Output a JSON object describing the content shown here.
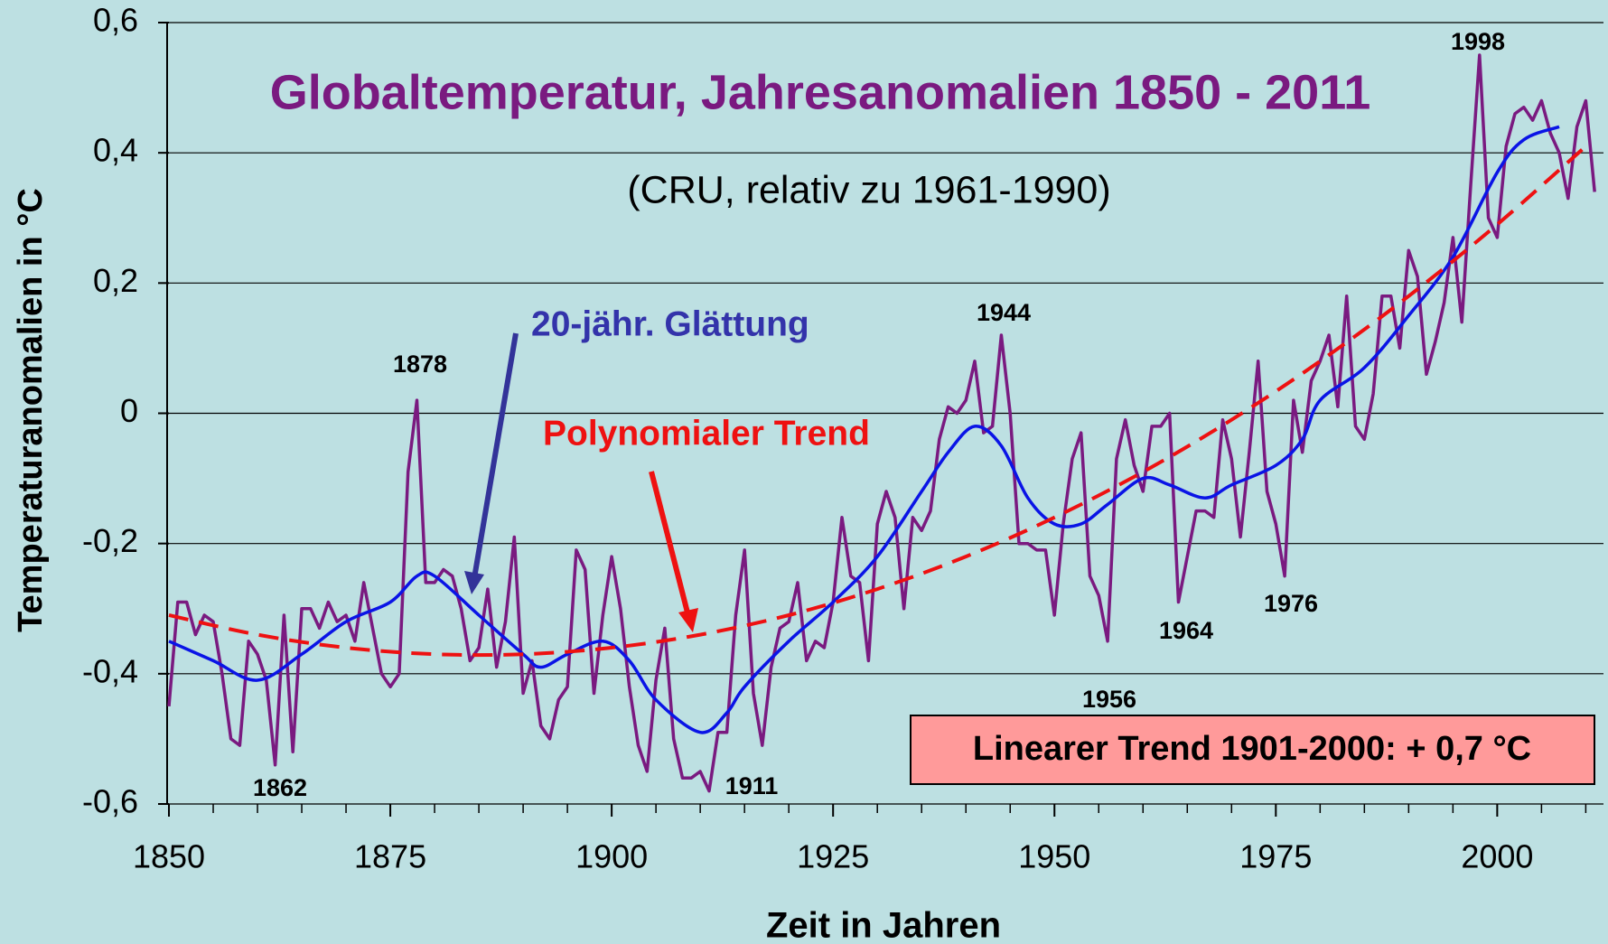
{
  "chart_data": {
    "type": "line",
    "title": "Globaltemperatur, Jahresanomalien 1850 - 2011",
    "subtitle": "(CRU, relativ zu 1961-1990)",
    "x_label": "Zeit in  Jahren",
    "y_label": "Temperaturanomalien in °C",
    "annotations": [
      "20-jähr. Glättung",
      "Polynomialer Trend",
      "Linearer Trend 1901-2000: + 0,7 °C"
    ],
    "year_labels": [
      "1862",
      "1878",
      "1911",
      "1944",
      "1956",
      "1964",
      "1976",
      "1998"
    ],
    "xlim": [
      1850,
      2012
    ],
    "ylim": [
      -0.6,
      0.6
    ],
    "xticks": [
      1850,
      1875,
      1900,
      1925,
      1950,
      1975,
      2000
    ],
    "xticks_minor": [
      1855,
      1860,
      1865,
      1870,
      1880,
      1885,
      1890,
      1895,
      1905,
      1910,
      1915,
      1920,
      1930,
      1935,
      1940,
      1945,
      1955,
      1960,
      1965,
      1970,
      1980,
      1985,
      1990,
      1995,
      2005,
      2010
    ],
    "yticks": [
      {
        "value": -0.6,
        "label": "-0,6"
      },
      {
        "value": -0.4,
        "label": "-0,4"
      },
      {
        "value": -0.2,
        "label": "-0,2"
      },
      0,
      {
        "value": 0.2,
        "label": "0,2"
      },
      {
        "value": 0.4,
        "label": "0,4"
      },
      {
        "value": 0.6,
        "label": "0,6"
      }
    ],
    "grid": true,
    "x": [
      1850,
      1851,
      1852,
      1853,
      1854,
      1855,
      1856,
      1857,
      1858,
      1859,
      1860,
      1861,
      1862,
      1863,
      1864,
      1865,
      1866,
      1867,
      1868,
      1869,
      1870,
      1871,
      1872,
      1873,
      1874,
      1875,
      1876,
      1877,
      1878,
      1879,
      1880,
      1881,
      1882,
      1883,
      1884,
      1885,
      1886,
      1887,
      1888,
      1889,
      1890,
      1891,
      1892,
      1893,
      1894,
      1895,
      1896,
      1897,
      1898,
      1899,
      1900,
      1901,
      1902,
      1903,
      1904,
      1905,
      1906,
      1907,
      1908,
      1909,
      1910,
      1911,
      1912,
      1913,
      1914,
      1915,
      1916,
      1917,
      1918,
      1919,
      1920,
      1921,
      1922,
      1923,
      1924,
      1925,
      1926,
      1927,
      1928,
      1929,
      1930,
      1931,
      1932,
      1933,
      1934,
      1935,
      1936,
      1937,
      1938,
      1939,
      1940,
      1941,
      1942,
      1943,
      1944,
      1945,
      1946,
      1947,
      1948,
      1949,
      1950,
      1951,
      1952,
      1953,
      1954,
      1955,
      1956,
      1957,
      1958,
      1959,
      1960,
      1961,
      1962,
      1963,
      1964,
      1965,
      1966,
      1967,
      1968,
      1969,
      1970,
      1971,
      1972,
      1973,
      1974,
      1975,
      1976,
      1977,
      1978,
      1979,
      1980,
      1981,
      1982,
      1983,
      1984,
      1985,
      1986,
      1987,
      1988,
      1989,
      1990,
      1991,
      1992,
      1993,
      1994,
      1995,
      1996,
      1997,
      1998,
      1999,
      2000,
      2001,
      2002,
      2003,
      2004,
      2005,
      2006,
      2007,
      2008,
      2009,
      2010,
      2011
    ],
    "series": [
      {
        "color": "#7a1a80",
        "style": "solid",
        "smooth": false,
        "values": [
          -0.45,
          -0.29,
          -0.29,
          -0.34,
          -0.31,
          -0.32,
          -0.4,
          -0.5,
          -0.51,
          -0.35,
          -0.37,
          -0.41,
          -0.54,
          -0.31,
          -0.52,
          -0.3,
          -0.3,
          -0.33,
          -0.29,
          -0.32,
          -0.31,
          -0.35,
          -0.26,
          -0.33,
          -0.4,
          -0.42,
          -0.4,
          -0.09,
          0.02,
          -0.26,
          -0.26,
          -0.24,
          -0.25,
          -0.3,
          -0.38,
          -0.36,
          -0.27,
          -0.39,
          -0.32,
          -0.19,
          -0.43,
          -0.38,
          -0.48,
          -0.5,
          -0.44,
          -0.42,
          -0.21,
          -0.24,
          -0.43,
          -0.31,
          -0.22,
          -0.3,
          -0.42,
          -0.51,
          -0.55,
          -0.41,
          -0.33,
          -0.5,
          -0.56,
          -0.56,
          -0.55,
          -0.58,
          -0.49,
          -0.49,
          -0.31,
          -0.21,
          -0.43,
          -0.51,
          -0.39,
          -0.33,
          -0.32,
          -0.26,
          -0.38,
          -0.35,
          -0.36,
          -0.29,
          -0.16,
          -0.25,
          -0.26,
          -0.38,
          -0.17,
          -0.12,
          -0.16,
          -0.3,
          -0.16,
          -0.18,
          -0.15,
          -0.04,
          0.01,
          0.0,
          0.02,
          0.08,
          -0.03,
          -0.02,
          0.12,
          0.0,
          -0.2,
          -0.2,
          -0.21,
          -0.21,
          -0.31,
          -0.17,
          -0.07,
          -0.03,
          -0.25,
          -0.28,
          -0.35,
          -0.07,
          -0.01,
          -0.08,
          -0.12,
          -0.02,
          -0.02,
          0.0,
          -0.29,
          -0.22,
          -0.15,
          -0.15,
          -0.16,
          -0.01,
          -0.07,
          -0.19,
          -0.06,
          0.08,
          -0.12,
          -0.17,
          -0.25,
          0.02,
          -0.06,
          0.05,
          0.08,
          0.12,
          0.01,
          0.18,
          -0.02,
          -0.04,
          0.03,
          0.18,
          0.18,
          0.1,
          0.25,
          0.21,
          0.06,
          0.11,
          0.17,
          0.27,
          0.14,
          0.35,
          0.55,
          0.3,
          0.27,
          0.41,
          0.46,
          0.47,
          0.45,
          0.48,
          0.43,
          0.4,
          0.33,
          0.44,
          0.48,
          0.34
        ]
      },
      {
        "name": "20-jähr. Glättung",
        "color": "#0a14e6",
        "style": "solid",
        "smooth": true,
        "x": [
          1850,
          1855,
          1860,
          1865,
          1870,
          1875,
          1878,
          1880,
          1885,
          1890,
          1892,
          1895,
          1899,
          1902,
          1905,
          1910,
          1913,
          1915,
          1920,
          1925,
          1930,
          1935,
          1938,
          1941,
          1944,
          1947,
          1950,
          1953,
          1956,
          1960,
          1963,
          1967,
          1970,
          1975,
          1978,
          1980,
          1985,
          1990,
          1995,
          2000,
          2003,
          2007
        ],
        "values": [
          -0.35,
          -0.38,
          -0.41,
          -0.37,
          -0.32,
          -0.29,
          -0.25,
          -0.25,
          -0.31,
          -0.37,
          -0.39,
          -0.37,
          -0.35,
          -0.38,
          -0.44,
          -0.49,
          -0.46,
          -0.42,
          -0.35,
          -0.29,
          -0.22,
          -0.12,
          -0.06,
          -0.02,
          -0.05,
          -0.13,
          -0.17,
          -0.17,
          -0.14,
          -0.1,
          -0.11,
          -0.13,
          -0.11,
          -0.08,
          -0.04,
          0.02,
          0.07,
          0.15,
          0.24,
          0.37,
          0.42,
          0.44
        ]
      },
      {
        "name": "Polynomialer Trend",
        "color": "#ee1111",
        "style": "dashed",
        "smooth": true,
        "x": [
          1850,
          1860,
          1870,
          1880,
          1890,
          1900,
          1910,
          1920,
          1930,
          1940,
          1950,
          1960,
          1970,
          1980,
          1990,
          2000,
          2010
        ],
        "values": [
          -0.31,
          -0.34,
          -0.36,
          -0.37,
          -0.37,
          -0.36,
          -0.34,
          -0.31,
          -0.27,
          -0.22,
          -0.16,
          -0.09,
          -0.01,
          0.08,
          0.18,
          0.29,
          0.41
        ]
      }
    ]
  }
}
